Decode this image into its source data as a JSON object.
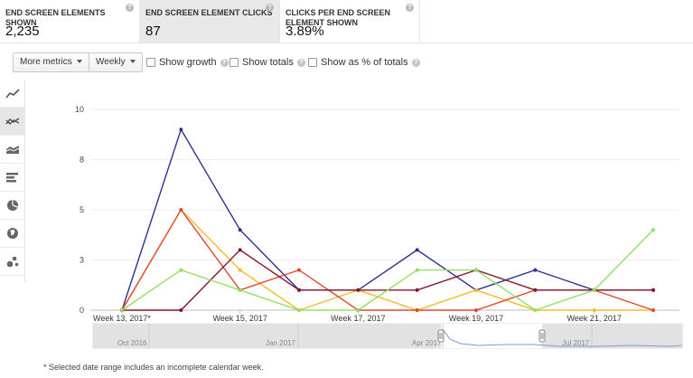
{
  "metric_cards": [
    {
      "label": "END SCREEN ELEMENTS SHOWN",
      "value": "2,235",
      "selected": false
    },
    {
      "label": "END SCREEN ELEMENT CLICKS",
      "value": "87",
      "selected": true
    },
    {
      "label": "CLICKS PER END SCREEN ELEMENT SHOWN",
      "value": "3.89%",
      "selected": false
    }
  ],
  "help_glyph": "?",
  "toolbar": {
    "more_metrics": "More metrics",
    "period": "Weekly",
    "show_growth": "Show growth",
    "show_totals": "Show totals",
    "show_percent": "Show as % of totals"
  },
  "side_icons": [
    "line-chart-icon",
    "multi-line-chart-icon",
    "stacked-area-icon",
    "bar-chart-icon",
    "pie-chart-icon",
    "globe-icon",
    "bubble-chart-icon"
  ],
  "footnote": "* Selected date range includes an incomplete calendar week.",
  "chart_data": {
    "type": "line",
    "x": [
      "Week 13, 2017*",
      "Week 14, 2017",
      "Week 15, 2017",
      "Week 16, 2017",
      "Week 17, 2017",
      "Week 18, 2017",
      "Week 19, 2017",
      "Week 20, 2017",
      "Week 21, 2017",
      "Week 22, 2017"
    ],
    "x_tick_labels": [
      "Week 13, 2017*",
      "Week 15, 2017",
      "Week 17, 2017",
      "Week 19, 2017",
      "Week 21, 2017"
    ],
    "x_tick_index": [
      0,
      2,
      4,
      6,
      8
    ],
    "y_ticks": [
      "10",
      "8",
      "5",
      "3",
      "0"
    ],
    "y_tick_values": [
      10,
      7.5,
      5,
      2.5,
      0
    ],
    "ylim": [
      0,
      10
    ],
    "grid": true,
    "series": [
      {
        "color": "#2f3192",
        "values": [
          0,
          9,
          4,
          1,
          1,
          3,
          1,
          2,
          1,
          1
        ]
      },
      {
        "color": "#fbb829",
        "values": [
          0,
          5,
          2,
          0,
          1,
          0,
          1,
          0,
          0,
          0
        ]
      },
      {
        "color": "#e0492d",
        "values": [
          0,
          5,
          1,
          2,
          0,
          0,
          0,
          1,
          1,
          0
        ]
      },
      {
        "color": "#8a1529",
        "values": [
          0,
          0,
          3,
          1,
          1,
          1,
          2,
          1,
          1,
          1
        ]
      },
      {
        "color": "#93e062",
        "values": [
          0,
          2,
          1,
          0,
          0,
          2,
          2,
          0,
          1,
          4
        ]
      }
    ],
    "navigator": {
      "labels": [
        "Oct 2016",
        "Jan 2017",
        "Apr 2017",
        "Jul 2017"
      ],
      "selected_range": [
        "Week 13, 2017",
        "Week 22, 2017"
      ]
    }
  }
}
